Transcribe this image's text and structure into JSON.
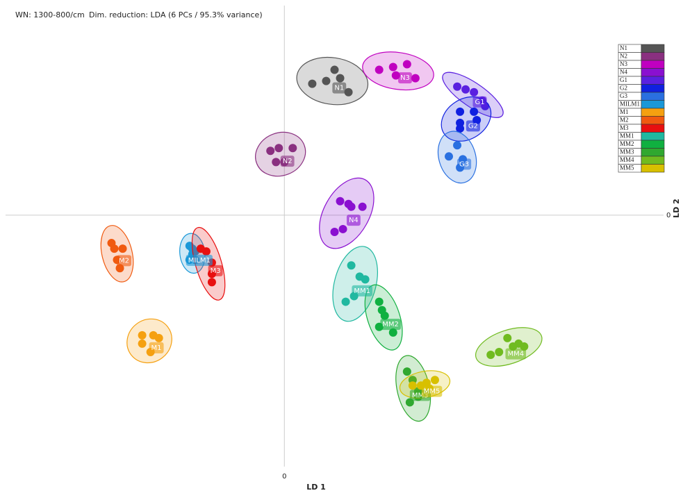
{
  "chart_data": {
    "type": "scatter",
    "annotations": [
      "WN: 1300-800/cm",
      "Dim. reduction: LDA (6 PCs / 95.3% variance)"
    ],
    "x_label": "LD 1",
    "y_label": "LD 2",
    "xlim": [
      -10,
      13.6
    ],
    "ylim": [
      -9,
      7.5
    ],
    "xticks": [
      0
    ],
    "yticks": [
      0
    ],
    "series": [
      {
        "name": "N1",
        "color": "#555555",
        "x": [
          1.0,
          1.5,
          1.8,
          2.0,
          2.3
        ],
        "values": [
          4.7,
          4.8,
          5.2,
          4.9,
          4.4
        ]
      },
      {
        "name": "N2",
        "color": "#8a3080",
        "x": [
          -0.5,
          -0.2,
          0.3,
          -0.3,
          0.0
        ],
        "values": [
          2.3,
          2.4,
          2.4,
          1.9,
          1.9
        ]
      },
      {
        "name": "N3",
        "color": "#c000c0",
        "x": [
          3.4,
          3.9,
          4.4,
          4.0,
          4.7
        ],
        "values": [
          5.2,
          5.3,
          5.4,
          5.0,
          4.9
        ]
      },
      {
        "name": "N4",
        "color": "#8a10d0",
        "x": [
          2.0,
          2.3,
          2.4,
          2.8,
          2.1,
          1.8
        ],
        "values": [
          0.5,
          0.4,
          0.3,
          0.3,
          -0.5,
          -0.6
        ]
      },
      {
        "name": "G1",
        "color": "#5a20e0",
        "x": [
          6.2,
          6.5,
          6.8,
          7.1,
          7.2
        ],
        "values": [
          4.6,
          4.5,
          4.4,
          4.1,
          3.9
        ]
      },
      {
        "name": "G2",
        "color": "#1020e0",
        "x": [
          6.3,
          6.8,
          6.3,
          6.3,
          6.9
        ],
        "values": [
          3.7,
          3.7,
          3.3,
          3.1,
          3.4
        ]
      },
      {
        "name": "G3",
        "color": "#2a70e0",
        "x": [
          6.2,
          5.9,
          6.4,
          6.3
        ],
        "values": [
          2.5,
          2.1,
          2.0,
          1.7
        ]
      },
      {
        "name": "MILM1",
        "color": "#1a98d8",
        "x": [
          -3.4,
          -3.3,
          -3.2,
          -3.4,
          -3.2,
          -3.3
        ],
        "values": [
          -1.1,
          -1.2,
          -1.3,
          -1.6,
          -1.6,
          -1.4
        ]
      },
      {
        "name": "M1",
        "color": "#f5a010",
        "x": [
          -5.1,
          -4.7,
          -4.5,
          -5.1,
          -4.8
        ],
        "values": [
          -4.3,
          -4.3,
          -4.4,
          -4.6,
          -4.9
        ]
      },
      {
        "name": "M2",
        "color": "#f05a10",
        "x": [
          -6.2,
          -6.1,
          -5.8,
          -6.0,
          -5.9
        ],
        "values": [
          -1.0,
          -1.2,
          -1.2,
          -1.6,
          -1.9
        ]
      },
      {
        "name": "M3",
        "color": "#e81010",
        "x": [
          -3.0,
          -2.8,
          -2.6,
          -2.6,
          -2.6
        ],
        "values": [
          -1.2,
          -1.3,
          -1.7,
          -2.1,
          -2.4
        ]
      },
      {
        "name": "MM1",
        "color": "#20b8a0",
        "x": [
          2.4,
          2.7,
          2.9,
          2.5,
          2.2
        ],
        "values": [
          -1.8,
          -2.2,
          -2.3,
          -2.9,
          -3.1
        ]
      },
      {
        "name": "MM2",
        "color": "#10b040",
        "x": [
          3.4,
          3.6,
          3.4,
          3.9,
          3.5
        ],
        "values": [
          -3.1,
          -3.6,
          -4.0,
          -4.2,
          -3.4
        ]
      },
      {
        "name": "MM3",
        "color": "#30a830",
        "x": [
          4.4,
          4.6,
          4.8,
          4.5,
          4.8
        ],
        "values": [
          -5.6,
          -5.9,
          -6.3,
          -6.7,
          -6.5
        ]
      },
      {
        "name": "MM4",
        "color": "#70bb20",
        "x": [
          7.4,
          8.0,
          8.2,
          8.4,
          8.6,
          7.7
        ],
        "values": [
          -5.0,
          -4.4,
          -4.7,
          -4.6,
          -4.7,
          -4.9
        ]
      },
      {
        "name": "MM5",
        "color": "#d8c000",
        "x": [
          4.6,
          5.1,
          5.4,
          5.2,
          4.9
        ],
        "values": [
          -6.1,
          -6.0,
          -5.9,
          -6.2,
          -6.1
        ]
      }
    ]
  }
}
